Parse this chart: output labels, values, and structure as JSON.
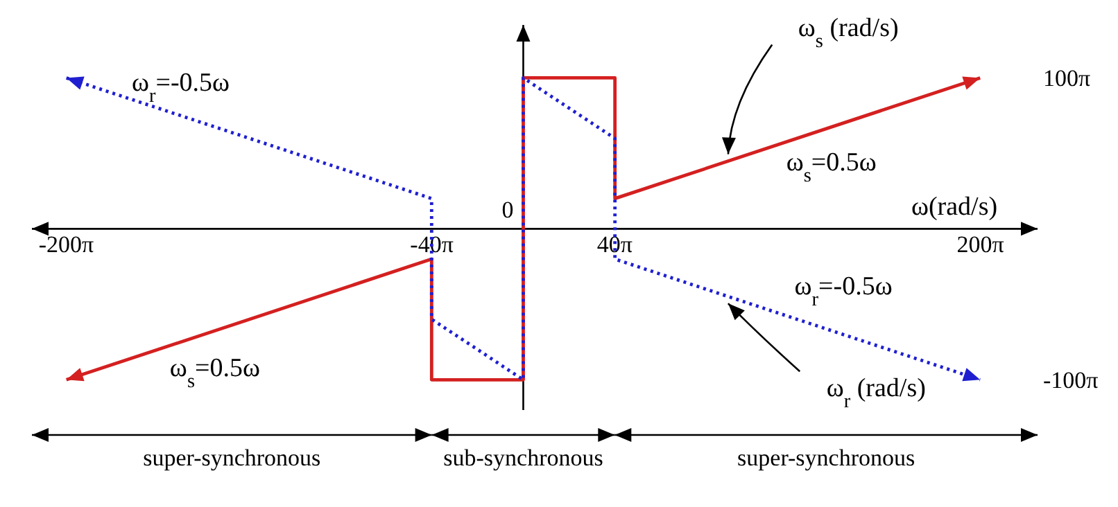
{
  "chart_data": {
    "type": "line",
    "xlabel": "ω(rad/s)",
    "xlim": [
      -675.4,
      706.9
    ],
    "ylim": [
      -377,
      424.1
    ],
    "xticks": [
      {
        "value": -628.3,
        "label": "-200π"
      },
      {
        "value": -125.7,
        "label": "-40π"
      },
      {
        "value": 125.7,
        "label": "40π"
      },
      {
        "value": 628.3,
        "label": "200π"
      }
    ],
    "yticks": [
      {
        "value": 314.2,
        "label": "100π"
      },
      {
        "value": -314.2,
        "label": "-100π"
      }
    ],
    "marker": "none",
    "series": [
      {
        "name": "ω$_{s}$ (rad/s)",
        "color": "#d42020",
        "line_style": "solid",
        "x": [
          -628,
          -126,
          -126,
          0,
          0,
          126,
          126,
          628
        ],
        "values": [
          -314,
          -63,
          -314,
          -314,
          314,
          314,
          63,
          314
        ]
      },
      {
        "name": "ω$_{r}$ (rad/s)",
        "color": "#1f1fd0",
        "line_style": "dotted",
        "x": [
          -628,
          -126,
          -126,
          0,
          0,
          126,
          126,
          628
        ],
        "values": [
          314,
          63,
          -188,
          -314,
          314,
          188,
          -63,
          -314
        ]
      }
    ],
    "annotations": [
      "ω$_{r}$=-0.5ω",
      "ω$_{s}$=0.5ω",
      "ω$_{r}$=-0.5ω",
      "ω$_{s}$=0.5ω",
      "super-synchronous",
      "sub-synchronous",
      "super-synchronous",
      "0"
    ]
  }
}
